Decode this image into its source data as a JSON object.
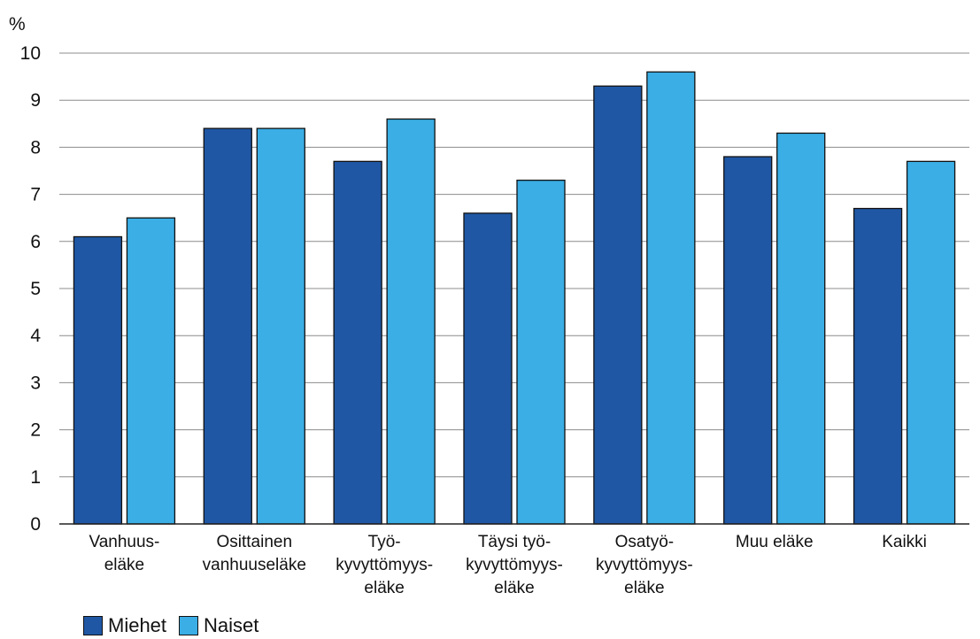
{
  "chart_data": {
    "type": "bar",
    "unit_label": "%",
    "categories": [
      [
        "Vanhuus-",
        "eläke"
      ],
      [
        "Osittainen",
        "vanhuuseläke"
      ],
      [
        "Työ-",
        "kyvyttömyys-",
        "eläke"
      ],
      [
        "Täysi työ-",
        "kyvyttömyys-",
        "eläke"
      ],
      [
        "Osatyö-",
        "kyvyttömyys-",
        "eläke"
      ],
      [
        "Muu eläke"
      ],
      [
        "Kaikki"
      ]
    ],
    "series": [
      {
        "name": "Miehet",
        "color": "#1f57a4",
        "values": [
          6.1,
          8.4,
          7.7,
          6.6,
          9.3,
          7.8,
          6.7
        ]
      },
      {
        "name": "Naiset",
        "color": "#3aaee5",
        "values": [
          6.5,
          8.4,
          8.6,
          7.3,
          9.6,
          8.3,
          7.7
        ]
      }
    ],
    "yticks": [
      "0",
      "1",
      "2",
      "3",
      "4",
      "5",
      "6",
      "7",
      "8",
      "9",
      "10"
    ],
    "ylim": [
      0,
      10
    ],
    "grid": true,
    "legend_position": "bottom-left"
  }
}
